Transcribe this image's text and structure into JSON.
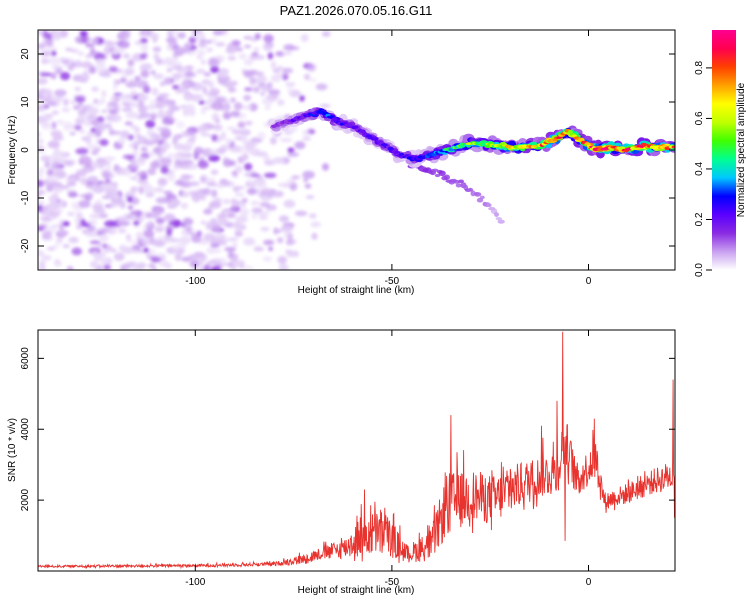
{
  "title": "PAZ1.2026.070.05.16.G11",
  "colors": {
    "snr_line": "#e8322d",
    "spectrogram_base": "#8a2be2",
    "axis": "#000000",
    "background": "#ffffff"
  },
  "chart_data": [
    {
      "type": "heatmap",
      "name": "spectrogram",
      "xlabel": "Height of straight line (km)",
      "ylabel": "Frequency (Hz)",
      "xlim": [
        -140,
        22
      ],
      "ylim": [
        -25,
        25
      ],
      "xticks": [
        -100,
        -50,
        0
      ],
      "xtick_labels": [
        "-100",
        "-50",
        "0"
      ],
      "yticks": [
        20,
        10,
        0,
        -10,
        -20
      ],
      "ytick_labels": [
        "20",
        "10",
        "0",
        "-10",
        "-20"
      ],
      "colorbar": {
        "label": "Normalized spectral amplitude",
        "range": [
          0,
          0.95
        ],
        "ticks": [
          0.0,
          0.2,
          0.4,
          0.6,
          0.8
        ],
        "tick_labels": [
          "0.0",
          "0.2",
          "0.4",
          "0.6",
          "0.8"
        ],
        "colormap": [
          "#ffffff",
          "#c8a0f0",
          "#8a2be2",
          "#5a00ff",
          "#0000ff",
          "#00c8ff",
          "#00ff90",
          "#40ff00",
          "#c0ff00",
          "#ffff00",
          "#ffa000",
          "#ff4000",
          "#ff0050",
          "#ff0090"
        ]
      },
      "ridge": [
        {
          "x": -80,
          "f": 5,
          "a": 0.15
        },
        {
          "x": -72,
          "f": 7,
          "a": 0.2
        },
        {
          "x": -68,
          "f": 8,
          "a": 0.3
        },
        {
          "x": -64,
          "f": 6,
          "a": 0.25
        },
        {
          "x": -60,
          "f": 5,
          "a": 0.22
        },
        {
          "x": -56,
          "f": 3,
          "a": 0.2
        },
        {
          "x": -52,
          "f": 1,
          "a": 0.2
        },
        {
          "x": -48,
          "f": -1,
          "a": 0.22
        },
        {
          "x": -44,
          "f": -2,
          "a": 0.25
        },
        {
          "x": -40,
          "f": -1,
          "a": 0.3
        },
        {
          "x": -36,
          "f": 0,
          "a": 0.4
        },
        {
          "x": -30,
          "f": 1.5,
          "a": 0.5
        },
        {
          "x": -24,
          "f": 1,
          "a": 0.55
        },
        {
          "x": -18,
          "f": 0.5,
          "a": 0.65
        },
        {
          "x": -12,
          "f": 1,
          "a": 0.7
        },
        {
          "x": -8,
          "f": 2.5,
          "a": 0.75
        },
        {
          "x": -5,
          "f": 4,
          "a": 0.6
        },
        {
          "x": -2,
          "f": 2,
          "a": 0.7
        },
        {
          "x": 2,
          "f": 0,
          "a": 0.85
        },
        {
          "x": 6,
          "f": 0.5,
          "a": 0.8
        },
        {
          "x": 10,
          "f": 0,
          "a": 0.75
        },
        {
          "x": 14,
          "f": 1,
          "a": 0.85
        },
        {
          "x": 18,
          "f": 0.5,
          "a": 0.8
        },
        {
          "x": 22,
          "f": 0.5,
          "a": 0.7
        }
      ],
      "secondary_branch": [
        {
          "x": -45,
          "f": -3,
          "a": 0.12
        },
        {
          "x": -38,
          "f": -5,
          "a": 0.12
        },
        {
          "x": -30,
          "f": -8,
          "a": 0.1
        },
        {
          "x": -25,
          "f": -12,
          "a": 0.06
        },
        {
          "x": -22,
          "f": -15,
          "a": 0.04
        }
      ]
    },
    {
      "type": "line",
      "name": "snr",
      "xlabel": "Height of straight line (km)",
      "ylabel": "SNR (10 * v/v)",
      "xlim": [
        -140,
        22
      ],
      "ylim": [
        0,
        6800
      ],
      "xticks": [
        -100,
        -50,
        0
      ],
      "xtick_labels": [
        "-100",
        "-50",
        "0"
      ],
      "yticks": [
        2000,
        4000,
        6000
      ],
      "ytick_labels": [
        "2000",
        "4000",
        "6000"
      ],
      "series": [
        {
          "name": "SNR",
          "envelope": [
            {
              "x": -140,
              "base": 120,
              "amp": 60
            },
            {
              "x": -120,
              "base": 130,
              "amp": 70
            },
            {
              "x": -100,
              "base": 140,
              "amp": 80
            },
            {
              "x": -80,
              "base": 180,
              "amp": 100
            },
            {
              "x": -72,
              "base": 300,
              "amp": 300
            },
            {
              "x": -68,
              "base": 450,
              "amp": 350
            },
            {
              "x": -62,
              "base": 550,
              "amp": 600
            },
            {
              "x": -58,
              "base": 800,
              "amp": 1200
            },
            {
              "x": -52,
              "base": 900,
              "amp": 1300
            },
            {
              "x": -46,
              "base": 400,
              "amp": 500
            },
            {
              "x": -40,
              "base": 600,
              "amp": 900
            },
            {
              "x": -36,
              "base": 1600,
              "amp": 1800
            },
            {
              "x": -30,
              "base": 1900,
              "amp": 1500
            },
            {
              "x": -24,
              "base": 1800,
              "amp": 1400
            },
            {
              "x": -18,
              "base": 2200,
              "amp": 1300
            },
            {
              "x": -12,
              "base": 2500,
              "amp": 1200
            },
            {
              "x": -8,
              "base": 2600,
              "amp": 1400
            },
            {
              "x": -6,
              "base": 3500,
              "amp": 1500
            },
            {
              "x": -3,
              "base": 2400,
              "amp": 1000
            },
            {
              "x": 2,
              "base": 3000,
              "amp": 1100
            },
            {
              "x": 4,
              "base": 1900,
              "amp": 500
            },
            {
              "x": 10,
              "base": 2100,
              "amp": 600
            },
            {
              "x": 16,
              "base": 2400,
              "amp": 700
            },
            {
              "x": 22,
              "base": 2600,
              "amp": 900
            }
          ],
          "peaks": [
            {
              "x": -6.5,
              "y": 6750
            },
            {
              "x": -8,
              "y": 4800
            },
            {
              "x": 1.5,
              "y": 4300
            },
            {
              "x": -12,
              "y": 4100
            },
            {
              "x": 21.5,
              "y": 5400
            },
            {
              "x": -35,
              "y": 4400
            },
            {
              "x": -57,
              "y": 2300
            },
            {
              "x": -6,
              "y": 850
            },
            {
              "x": 22,
              "y": 1500
            }
          ]
        }
      ]
    }
  ]
}
